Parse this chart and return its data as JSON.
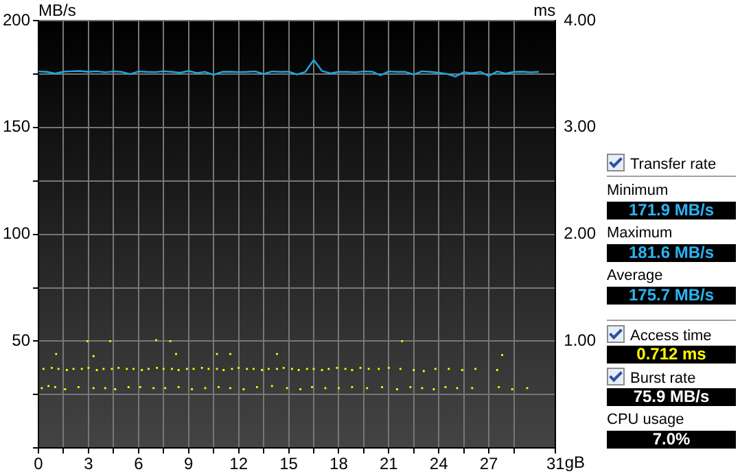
{
  "chart_data": {
    "type": "line",
    "xlabel": "gB",
    "ylabel": "MB/s",
    "y2label": "ms",
    "xlim": [
      0,
      31
    ],
    "xticks": [
      0,
      {
        "value": 1.5,
        "label": null
      },
      3,
      {
        "value": 4.5,
        "label": null
      },
      6,
      {
        "value": 7.5,
        "label": null
      },
      9,
      {
        "value": 10.5,
        "label": null
      },
      12,
      {
        "value": 13.5,
        "label": null
      },
      15,
      {
        "value": 16.5,
        "label": null
      },
      18,
      {
        "value": 19.5,
        "label": null
      },
      21,
      {
        "value": 22.5,
        "label": null
      },
      24,
      {
        "value": 25.5,
        "label": null
      },
      27,
      {
        "value": 28.5,
        "label": null
      },
      31
    ],
    "ylim": [
      0,
      200
    ],
    "yticks": [
      {
        "value": 0,
        "label": null
      },
      {
        "value": 25,
        "label": null
      },
      50,
      {
        "value": 75,
        "label": null
      },
      100,
      {
        "value": 125,
        "label": null
      },
      150,
      {
        "value": 175,
        "label": null
      },
      200
    ],
    "y2lim": [
      0,
      4
    ],
    "y2ticks": [
      {
        "value": 1,
        "label": "1.00"
      },
      {
        "value": 2,
        "label": "2.00"
      },
      {
        "value": 3,
        "label": "3.00"
      },
      {
        "value": 4,
        "label": "4.00"
      }
    ],
    "grid": true,
    "legend": false,
    "series": [
      {
        "color": "#1ea8e6",
        "marker": "none",
        "x": [
          0,
          0.5,
          1,
          1.5,
          2,
          2.5,
          3,
          3.5,
          4,
          4.5,
          5,
          5.5,
          6,
          6.5,
          7,
          7.5,
          8,
          8.5,
          9,
          9.5,
          10,
          10.5,
          11,
          11.5,
          12,
          12.5,
          13,
          13.5,
          14,
          14.5,
          15,
          15.5,
          16,
          16.5,
          17,
          17.5,
          18,
          18.5,
          19,
          19.5,
          20,
          20.5,
          21,
          21.5,
          22,
          22.5,
          23,
          23.5,
          24,
          24.5,
          25,
          25.5,
          26,
          26.5,
          27,
          27.5,
          28,
          28.5,
          29,
          29.5,
          30
        ],
        "values": [
          176.2,
          176.0,
          175.2,
          176.1,
          176.3,
          176.4,
          176.0,
          176.3,
          175.8,
          176.2,
          176.0,
          174.9,
          176.2,
          176.0,
          175.9,
          176.3,
          176.0,
          175.6,
          176.4,
          175.5,
          176.0,
          174.6,
          176.0,
          176.1,
          175.9,
          176.0,
          176.2,
          175.0,
          176.2,
          176.0,
          176.1,
          174.8,
          176.0,
          181.6,
          176.4,
          175.3,
          176.0,
          176.0,
          175.8,
          176.2,
          176.1,
          174.4,
          176.2,
          176.0,
          176.0,
          174.8,
          176.3,
          176.0,
          175.6,
          175.0,
          173.8,
          175.9,
          175.4,
          176.0,
          174.1,
          176.2,
          175.2,
          176.0,
          176.1,
          175.8,
          176.0
        ]
      },
      {
        "type": "scatter",
        "axis": "y2",
        "color": "#ffff00",
        "marker": "square",
        "x": [
          0.3,
          0.8,
          1.2,
          1.7,
          2.1,
          2.6,
          3.0,
          3.5,
          3.9,
          4.4,
          4.8,
          5.3,
          5.7,
          6.2,
          6.6,
          7.1,
          7.5,
          8.0,
          8.4,
          8.9,
          9.3,
          9.8,
          10.2,
          10.7,
          11.1,
          11.6,
          12.0,
          12.5,
          12.9,
          13.4,
          13.8,
          14.3,
          14.7,
          15.2,
          15.6,
          16.1,
          16.5,
          17.0,
          17.4,
          17.9,
          18.4,
          18.8,
          19.3,
          19.8,
          20.4,
          21.0,
          21.7,
          22.5,
          23.1,
          23.8,
          24.6,
          25.4,
          26.2,
          27.5,
          0.2,
          0.6,
          1.0,
          1.6,
          2.4,
          3.3,
          4.0,
          4.6,
          5.4,
          6.1,
          6.9,
          7.6,
          8.4,
          9.2,
          10.0,
          10.8,
          11.5,
          12.3,
          13.1,
          14.0,
          14.9,
          15.7,
          16.4,
          17.2,
          18.0,
          18.8,
          19.7,
          20.6,
          21.5,
          22.3,
          23.0,
          23.7,
          24.4,
          25.1,
          26.0,
          27.6,
          28.4,
          29.3,
          2.94,
          4.3,
          7.06,
          7.9,
          21.8,
          1.06,
          3.3,
          8.25,
          10.7,
          11.5,
          14.3,
          27.8
        ],
        "values": [
          0.74,
          0.75,
          0.74,
          0.73,
          0.74,
          0.74,
          0.75,
          0.73,
          0.74,
          0.74,
          0.75,
          0.74,
          0.74,
          0.73,
          0.74,
          0.75,
          0.74,
          0.74,
          0.73,
          0.74,
          0.74,
          0.75,
          0.74,
          0.74,
          0.73,
          0.74,
          0.75,
          0.74,
          0.74,
          0.73,
          0.74,
          0.74,
          0.75,
          0.74,
          0.73,
          0.74,
          0.74,
          0.73,
          0.74,
          0.75,
          0.74,
          0.73,
          0.75,
          0.74,
          0.74,
          0.75,
          0.74,
          0.73,
          0.72,
          0.74,
          0.74,
          0.73,
          0.74,
          0.73,
          0.56,
          0.58,
          0.57,
          0.55,
          0.57,
          0.56,
          0.56,
          0.55,
          0.57,
          0.57,
          0.56,
          0.56,
          0.57,
          0.55,
          0.56,
          0.57,
          0.56,
          0.55,
          0.57,
          0.58,
          0.56,
          0.55,
          0.57,
          0.56,
          0.56,
          0.57,
          0.56,
          0.57,
          0.55,
          0.57,
          0.56,
          0.55,
          0.57,
          0.56,
          0.56,
          0.57,
          0.55,
          0.56,
          1.0,
          1.0,
          1.01,
          1.0,
          1.0,
          0.88,
          0.86,
          0.88,
          0.88,
          0.88,
          0.88,
          0.87
        ]
      }
    ],
    "annotations": [
      "Transfer rate",
      "Minimum",
      "171.9 MB/s",
      "Maximum",
      "181.6 MB/s",
      "Average",
      "175.7 MB/s",
      "Access time",
      "0.712 ms",
      "Burst rate",
      "75.9 MB/s",
      "CPU usage",
      "7.0%"
    ]
  }
}
